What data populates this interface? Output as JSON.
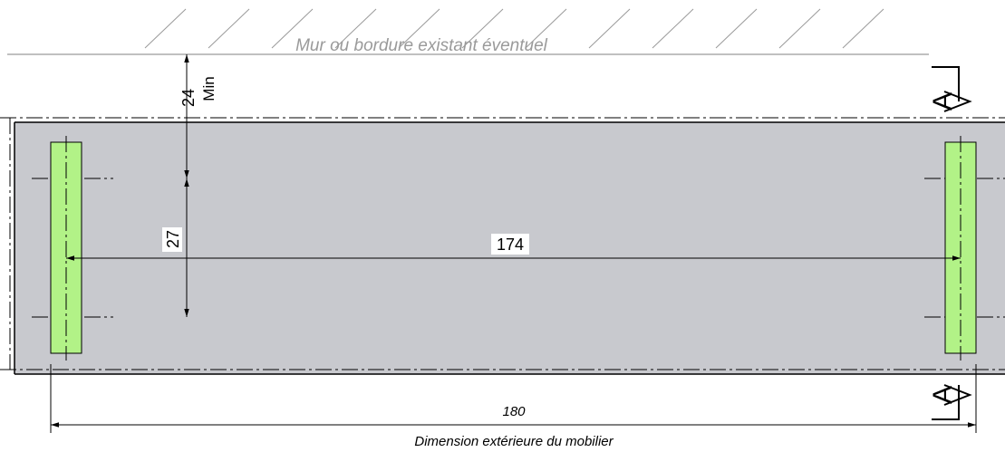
{
  "wall_label": "Mur ou bordure existant éventuel",
  "clearance": {
    "value": "24",
    "note": "Min"
  },
  "spacing": {
    "value": "27"
  },
  "span": {
    "value": "174"
  },
  "overall": {
    "value": "180",
    "caption": "Dimension extérieure du mobilier"
  },
  "section_marker": {
    "letter": "A"
  },
  "colors": {
    "body_fill": "#c8c9ce",
    "foot_fill": "#b2f287",
    "line": "#000000",
    "wall_line": "#9a9a9a"
  }
}
